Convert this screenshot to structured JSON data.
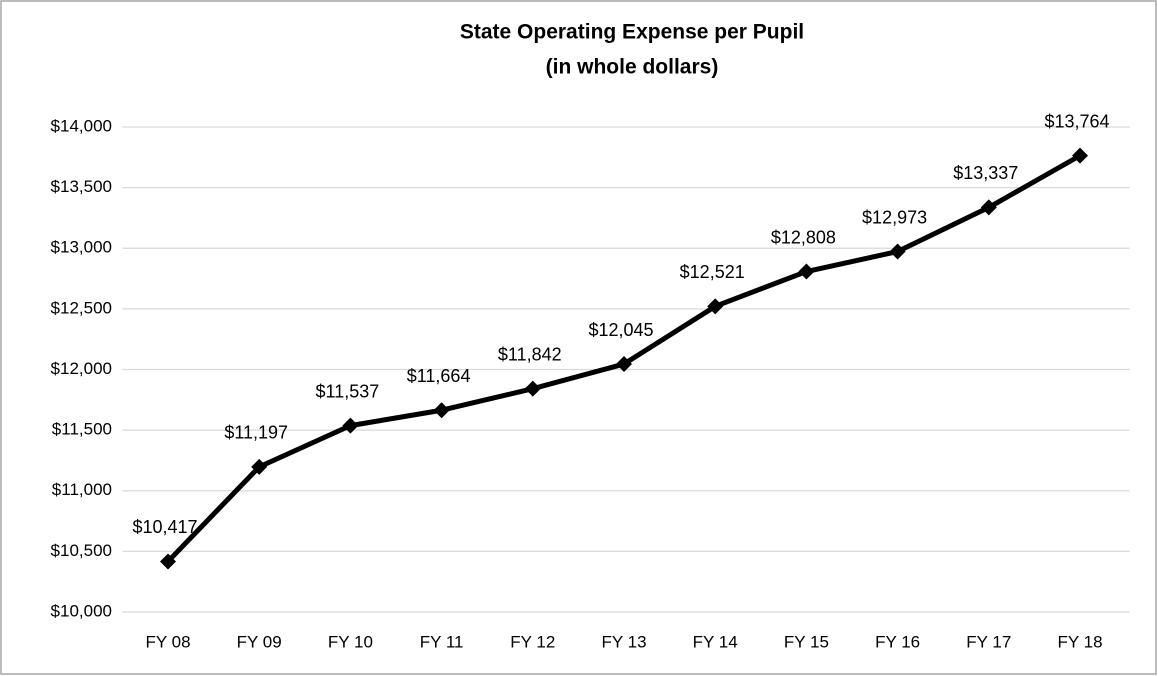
{
  "chart_data": {
    "type": "line",
    "title": "State Operating Expense per Pupil",
    "subtitle": "(in whole dollars)",
    "categories": [
      "FY 08",
      "FY 09",
      "FY 10",
      "FY 11",
      "FY 12",
      "FY 13",
      "FY 14",
      "FY 15",
      "FY 16",
      "FY 17",
      "FY 18"
    ],
    "values": [
      10417,
      11197,
      11537,
      11664,
      11842,
      12045,
      12521,
      12808,
      12973,
      13337,
      13764
    ],
    "value_labels": [
      "$10,417",
      "$11,197",
      "$11,537",
      "$11,664",
      "$11,842",
      "$12,045",
      "$12,521",
      "$12,808",
      "$12,973",
      "$13,337",
      "$13,764"
    ],
    "color": "#000000",
    "ylim": [
      10000,
      14000
    ],
    "yticks": [
      {
        "value": 10000,
        "label": "$10,000"
      },
      {
        "value": 10500,
        "label": "$10,500"
      },
      {
        "value": 11000,
        "label": "$11,000"
      },
      {
        "value": 11500,
        "label": "$11,500"
      },
      {
        "value": 12000,
        "label": "$12,000"
      },
      {
        "value": 12500,
        "label": "$12,500"
      },
      {
        "value": 13000,
        "label": "$13,000"
      },
      {
        "value": 13500,
        "label": "$13,500"
      },
      {
        "value": 14000,
        "label": "$14,000"
      }
    ],
    "grid": true
  }
}
